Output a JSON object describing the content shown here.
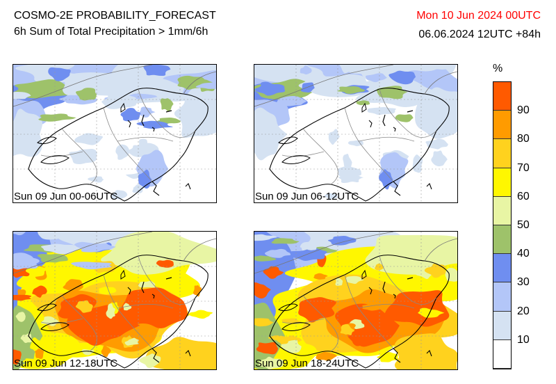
{
  "header": {
    "title_line1": "COSMO-2E PROBABILITY_FORECAST",
    "title_line2": "6h Sum of Total Precipitation > 1mm/6h",
    "valid_date": "Mon 10 Jun 2024 00UTC",
    "run_info": "06.06.2024 12UTC +84h",
    "valid_date_color": "#ff0000"
  },
  "panels": [
    {
      "label": "Sun 09 Jun 00-06UTC",
      "overall_level": "low",
      "dominant_probability_pct": 20
    },
    {
      "label": "Sun 09 Jun 06-12UTC",
      "overall_level": "low",
      "dominant_probability_pct": 10
    },
    {
      "label": "Sun 09 Jun 12-18UTC",
      "overall_level": "high",
      "dominant_probability_pct": 90
    },
    {
      "label": "Sun 09 Jun 18-24UTC",
      "overall_level": "high",
      "dominant_probability_pct": 90
    }
  ],
  "legend": {
    "unit": "%",
    "ticks": [
      "10",
      "20",
      "30",
      "40",
      "50",
      "60",
      "70",
      "80",
      "90"
    ],
    "bins": [
      {
        "range": "0-10",
        "color": "#ffffff"
      },
      {
        "range": "10-20",
        "color": "#d5e2f2"
      },
      {
        "range": "20-30",
        "color": "#b3c6f8"
      },
      {
        "range": "30-40",
        "color": "#6f8ef0"
      },
      {
        "range": "40-50",
        "color": "#9ec26a"
      },
      {
        "range": "50-60",
        "color": "#e8f5a4"
      },
      {
        "range": "60-70",
        "color": "#fff700"
      },
      {
        "range": "70-80",
        "color": "#ffd21e"
      },
      {
        "range": "80-90",
        "color": "#ff9b00"
      },
      {
        "range": "90-100",
        "color": "#ff5a00"
      }
    ]
  }
}
